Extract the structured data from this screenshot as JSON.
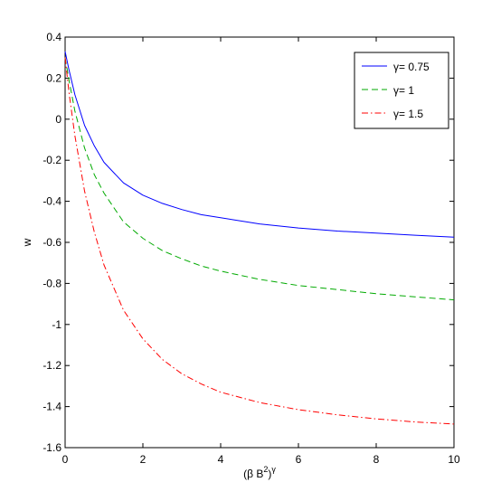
{
  "chart_data": {
    "type": "line",
    "title": "",
    "xlabel_base": "(β B",
    "xlabel_sup1": "2",
    "xlabel_close": ")",
    "xlabel_sup2": "γ",
    "ylabel": "w",
    "xlim": [
      0,
      10
    ],
    "ylim": [
      -1.6,
      0.4
    ],
    "xticks": [
      "0",
      "2",
      "4",
      "6",
      "8",
      "10"
    ],
    "xtick_values": [
      0,
      2,
      4,
      6,
      8,
      10
    ],
    "yticks": [
      "0.4",
      "0.2",
      "0",
      "-0.2",
      "-0.4",
      "-0.6",
      "-0.8",
      "-1",
      "-1.2",
      "-1.4",
      "-1.6"
    ],
    "ytick_values": [
      0.4,
      0.2,
      0,
      -0.2,
      -0.4,
      -0.6,
      -0.8,
      -1,
      -1.2,
      -1.4,
      -1.6
    ],
    "grid": false,
    "legend_position": "top-right",
    "x": [
      0,
      0.1,
      0.25,
      0.5,
      0.75,
      1,
      1.5,
      2,
      2.5,
      3,
      3.5,
      4,
      5,
      6,
      7,
      8,
      9,
      10
    ],
    "series": [
      {
        "name": "γ= 0.75",
        "color": "#0000ff",
        "style": "solid",
        "values": [
          0.33,
          0.24,
          0.12,
          -0.03,
          -0.13,
          -0.21,
          -0.31,
          -0.37,
          -0.41,
          -0.44,
          -0.465,
          -0.48,
          -0.51,
          -0.53,
          -0.545,
          -0.555,
          -0.565,
          -0.575
        ]
      },
      {
        "name": "γ= 1",
        "color": "#00aa00",
        "style": "dashed",
        "values": [
          0.3,
          0.19,
          0.04,
          -0.14,
          -0.27,
          -0.36,
          -0.5,
          -0.58,
          -0.64,
          -0.68,
          -0.715,
          -0.74,
          -0.78,
          -0.81,
          -0.83,
          -0.85,
          -0.865,
          -0.88
        ]
      },
      {
        "name": "γ= 1.5",
        "color": "#ff0000",
        "style": "dashdot",
        "values": [
          0.3,
          0.13,
          -0.08,
          -0.35,
          -0.55,
          -0.71,
          -0.93,
          -1.07,
          -1.17,
          -1.24,
          -1.29,
          -1.33,
          -1.38,
          -1.415,
          -1.44,
          -1.46,
          -1.475,
          -1.485
        ]
      }
    ]
  }
}
